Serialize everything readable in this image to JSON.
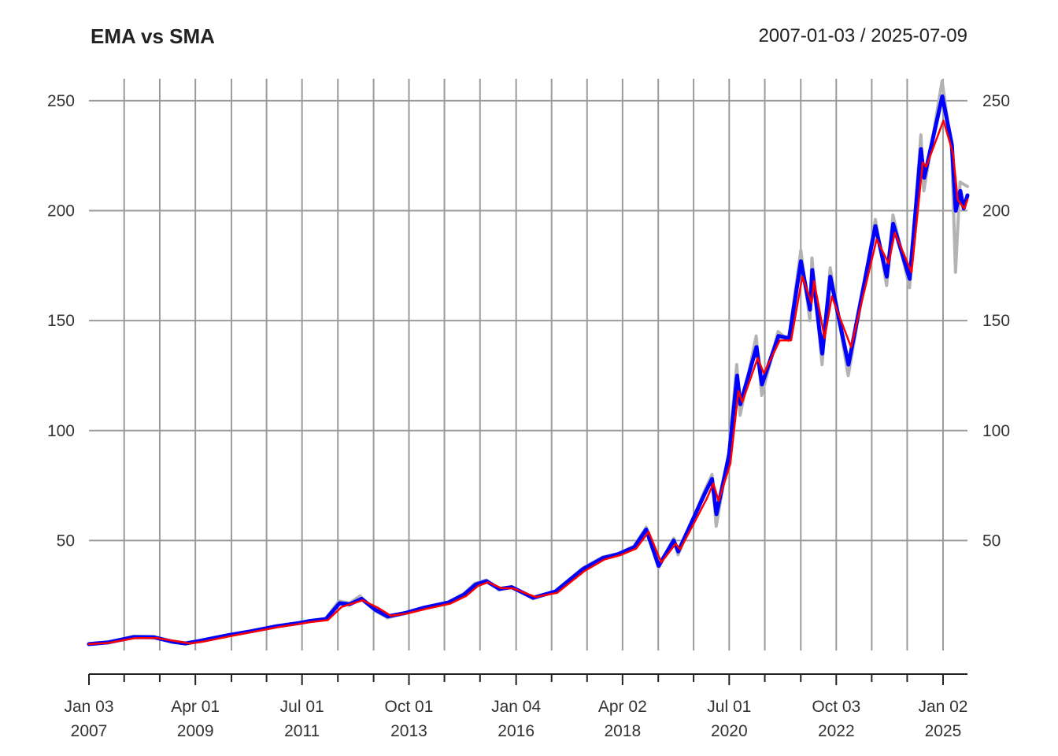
{
  "chart_data": {
    "type": "line",
    "title": "EMA vs SMA",
    "date_range": "2007-01-03 / 2025-07-09",
    "xlabel": "",
    "ylabel": "",
    "xlim": [
      "2007-01-03",
      "2025-07-09"
    ],
    "ylim": [
      0,
      260
    ],
    "y_ticks": [
      50,
      100,
      150,
      200,
      250
    ],
    "x_ticks": [
      {
        "date": "2007-01-03",
        "label_line1": "Jan 03",
        "label_line2": "2007"
      },
      {
        "date": "2007-10-01",
        "label_line1": "",
        "label_line2": ""
      },
      {
        "date": "2008-07-01",
        "label_line1": "",
        "label_line2": ""
      },
      {
        "date": "2009-04-01",
        "label_line1": "Apr 01",
        "label_line2": "2009"
      },
      {
        "date": "2010-01-04",
        "label_line1": "",
        "label_line2": ""
      },
      {
        "date": "2010-10-01",
        "label_line1": "",
        "label_line2": ""
      },
      {
        "date": "2011-07-01",
        "label_line1": "Jul 01",
        "label_line2": "2011"
      },
      {
        "date": "2012-04-02",
        "label_line1": "",
        "label_line2": ""
      },
      {
        "date": "2013-01-02",
        "label_line1": "",
        "label_line2": ""
      },
      {
        "date": "2013-10-01",
        "label_line1": "Oct 01",
        "label_line2": "2013"
      },
      {
        "date": "2014-07-01",
        "label_line1": "",
        "label_line2": ""
      },
      {
        "date": "2015-04-01",
        "label_line1": "",
        "label_line2": ""
      },
      {
        "date": "2016-01-04",
        "label_line1": "Jan 04",
        "label_line2": "2016"
      },
      {
        "date": "2016-10-03",
        "label_line1": "",
        "label_line2": ""
      },
      {
        "date": "2017-07-03",
        "label_line1": "",
        "label_line2": ""
      },
      {
        "date": "2018-04-02",
        "label_line1": "Apr 02",
        "label_line2": "2018"
      },
      {
        "date": "2019-01-02",
        "label_line1": "",
        "label_line2": ""
      },
      {
        "date": "2019-10-01",
        "label_line1": "",
        "label_line2": ""
      },
      {
        "date": "2020-07-01",
        "label_line1": "Jul 01",
        "label_line2": "2020"
      },
      {
        "date": "2021-04-01",
        "label_line1": "",
        "label_line2": ""
      },
      {
        "date": "2022-01-03",
        "label_line1": "",
        "label_line2": ""
      },
      {
        "date": "2022-10-03",
        "label_line1": "Oct 03",
        "label_line2": "2022"
      },
      {
        "date": "2023-07-03",
        "label_line1": "",
        "label_line2": ""
      },
      {
        "date": "2024-04-01",
        "label_line1": "",
        "label_line2": ""
      },
      {
        "date": "2025-01-02",
        "label_line1": "Jan 02",
        "label_line2": "2025"
      }
    ],
    "grid": true,
    "series": [
      {
        "role": "price",
        "color": "#b3b3b3",
        "points": [
          [
            "2007-01-03",
            2.9
          ],
          [
            "2007-06-01",
            3.8
          ],
          [
            "2007-12-15",
            6.5
          ],
          [
            "2008-05-15",
            6.3
          ],
          [
            "2008-10-01",
            3.8
          ],
          [
            "2009-01-15",
            3.0
          ],
          [
            "2009-05-01",
            4.5
          ],
          [
            "2009-12-15",
            7.2
          ],
          [
            "2010-06-01",
            8.8
          ],
          [
            "2010-12-15",
            11.2
          ],
          [
            "2011-06-01",
            12.6
          ],
          [
            "2011-09-01",
            13.6
          ],
          [
            "2012-01-01",
            14.5
          ],
          [
            "2012-04-10",
            22.5
          ],
          [
            "2012-07-01",
            21.5
          ],
          [
            "2012-09-20",
            24.8
          ],
          [
            "2013-01-15",
            18.0
          ],
          [
            "2013-04-20",
            14.8
          ],
          [
            "2013-09-01",
            17.0
          ],
          [
            "2014-01-15",
            19.5
          ],
          [
            "2014-08-01",
            22.0
          ],
          [
            "2014-12-01",
            26.0
          ],
          [
            "2015-02-20",
            30.5
          ],
          [
            "2015-05-20",
            32.0
          ],
          [
            "2015-08-25",
            27.5
          ],
          [
            "2015-12-01",
            29.0
          ],
          [
            "2016-05-12",
            23.5
          ],
          [
            "2016-11-01",
            27.0
          ],
          [
            "2017-06-01",
            37.5
          ],
          [
            "2017-11-01",
            42.5
          ],
          [
            "2018-03-01",
            44.0
          ],
          [
            "2018-07-01",
            47.5
          ],
          [
            "2018-10-01",
            56.0
          ],
          [
            "2019-01-03",
            37.5
          ],
          [
            "2019-05-01",
            51.0
          ],
          [
            "2019-06-03",
            43.5
          ],
          [
            "2019-12-31",
            73.5
          ],
          [
            "2020-02-20",
            80.0
          ],
          [
            "2020-03-23",
            56.5
          ],
          [
            "2020-06-30",
            91.0
          ],
          [
            "2020-08-28",
            130.0
          ],
          [
            "2020-09-23",
            107.0
          ],
          [
            "2021-01-25",
            143.0
          ],
          [
            "2021-03-08",
            116.0
          ],
          [
            "2021-07-12",
            145.0
          ],
          [
            "2021-10-01",
            141.0
          ],
          [
            "2022-01-03",
            182.0
          ],
          [
            "2022-03-14",
            150.0
          ],
          [
            "2022-03-30",
            178.5
          ],
          [
            "2022-06-16",
            130.0
          ],
          [
            "2022-08-17",
            174.0
          ],
          [
            "2023-01-03",
            125.0
          ],
          [
            "2023-07-31",
            196.0
          ],
          [
            "2023-10-26",
            166.0
          ],
          [
            "2023-12-14",
            198.0
          ],
          [
            "2024-04-19",
            165.0
          ],
          [
            "2024-07-15",
            234.5
          ],
          [
            "2024-08-07",
            209.0
          ],
          [
            "2024-12-26",
            259.0
          ],
          [
            "2025-03-10",
            227.0
          ],
          [
            "2025-04-08",
            172.0
          ],
          [
            "2025-05-13",
            213.0
          ],
          [
            "2025-07-09",
            211.0
          ]
        ]
      },
      {
        "role": "ema",
        "color": "#0000ff",
        "points": [
          [
            "2007-01-03",
            2.9
          ],
          [
            "2007-06-01",
            3.7
          ],
          [
            "2007-12-15",
            6.1
          ],
          [
            "2008-05-15",
            6.0
          ],
          [
            "2008-10-01",
            4.1
          ],
          [
            "2009-01-15",
            3.2
          ],
          [
            "2009-05-01",
            4.3
          ],
          [
            "2009-12-15",
            7.0
          ],
          [
            "2010-06-01",
            8.7
          ],
          [
            "2010-12-15",
            11.0
          ],
          [
            "2011-06-01",
            12.4
          ],
          [
            "2011-09-01",
            13.4
          ],
          [
            "2012-01-01",
            14.3
          ],
          [
            "2012-04-15",
            21.5
          ],
          [
            "2012-07-01",
            21.0
          ],
          [
            "2012-10-01",
            23.5
          ],
          [
            "2013-01-15",
            18.5
          ],
          [
            "2013-04-20",
            15.5
          ],
          [
            "2013-09-01",
            17.0
          ],
          [
            "2014-01-15",
            19.3
          ],
          [
            "2014-08-01",
            21.8
          ],
          [
            "2014-12-01",
            25.5
          ],
          [
            "2015-02-28",
            30.0
          ],
          [
            "2015-05-20",
            31.5
          ],
          [
            "2015-08-28",
            28.0
          ],
          [
            "2015-12-01",
            28.8
          ],
          [
            "2016-05-15",
            24.0
          ],
          [
            "2016-11-01",
            26.8
          ],
          [
            "2017-06-01",
            37.0
          ],
          [
            "2017-11-01",
            42.0
          ],
          [
            "2018-03-01",
            43.8
          ],
          [
            "2018-07-01",
            47.0
          ],
          [
            "2018-10-01",
            55.0
          ],
          [
            "2019-01-05",
            38.5
          ],
          [
            "2019-05-01",
            50.0
          ],
          [
            "2019-06-05",
            45.0
          ],
          [
            "2019-12-31",
            72.0
          ],
          [
            "2020-02-20",
            78.0
          ],
          [
            "2020-03-25",
            62.0
          ],
          [
            "2020-06-30",
            89.0
          ],
          [
            "2020-08-31",
            125.0
          ],
          [
            "2020-09-25",
            112.0
          ],
          [
            "2021-01-27",
            138.0
          ],
          [
            "2021-03-10",
            121.0
          ],
          [
            "2021-07-15",
            143.0
          ],
          [
            "2021-10-05",
            142.0
          ],
          [
            "2022-01-04",
            177.0
          ],
          [
            "2022-03-15",
            155.0
          ],
          [
            "2022-04-01",
            173.0
          ],
          [
            "2022-06-17",
            135.0
          ],
          [
            "2022-08-18",
            170.0
          ],
          [
            "2023-01-05",
            130.0
          ],
          [
            "2023-07-31",
            193.0
          ],
          [
            "2023-10-27",
            170.0
          ],
          [
            "2023-12-15",
            194.0
          ],
          [
            "2024-04-20",
            169.0
          ],
          [
            "2024-07-16",
            228.0
          ],
          [
            "2024-08-10",
            215.0
          ],
          [
            "2024-12-27",
            252.0
          ],
          [
            "2025-03-11",
            230.0
          ],
          [
            "2025-04-10",
            200.0
          ],
          [
            "2025-05-15",
            209.0
          ],
          [
            "2025-06-10",
            201.0
          ],
          [
            "2025-07-09",
            207.0
          ]
        ]
      },
      {
        "role": "sma",
        "color": "#ff0000",
        "points": [
          [
            "2007-01-03",
            2.9
          ],
          [
            "2007-06-01",
            3.4
          ],
          [
            "2007-12-20",
            5.6
          ],
          [
            "2008-06-01",
            5.7
          ],
          [
            "2008-11-01",
            4.3
          ],
          [
            "2009-02-15",
            3.2
          ],
          [
            "2009-06-01",
            4.0
          ],
          [
            "2009-12-31",
            6.6
          ],
          [
            "2010-06-15",
            8.4
          ],
          [
            "2010-12-31",
            10.6
          ],
          [
            "2011-06-15",
            12.1
          ],
          [
            "2011-09-15",
            13.0
          ],
          [
            "2012-01-15",
            13.8
          ],
          [
            "2012-05-01",
            19.8
          ],
          [
            "2012-07-15",
            21.2
          ],
          [
            "2012-10-10",
            22.8
          ],
          [
            "2013-02-01",
            19.5
          ],
          [
            "2013-05-15",
            15.8
          ],
          [
            "2013-09-15",
            16.8
          ],
          [
            "2014-02-01",
            18.8
          ],
          [
            "2014-08-15",
            21.3
          ],
          [
            "2014-12-15",
            24.8
          ],
          [
            "2015-03-15",
            29.3
          ],
          [
            "2015-06-01",
            31.0
          ],
          [
            "2015-09-10",
            28.4
          ],
          [
            "2015-12-15",
            28.2
          ],
          [
            "2016-06-01",
            24.3
          ],
          [
            "2016-11-15",
            26.2
          ],
          [
            "2017-06-15",
            36.2
          ],
          [
            "2017-11-15",
            41.4
          ],
          [
            "2018-03-15",
            43.3
          ],
          [
            "2018-07-15",
            46.3
          ],
          [
            "2018-10-20",
            54.0
          ],
          [
            "2019-01-25",
            40.0
          ],
          [
            "2019-05-15",
            48.5
          ],
          [
            "2019-06-20",
            46.0
          ],
          [
            "2020-01-10",
            69.0
          ],
          [
            "2020-03-01",
            76.0
          ],
          [
            "2020-04-10",
            68.0
          ],
          [
            "2020-07-10",
            85.0
          ],
          [
            "2020-09-10",
            118.0
          ],
          [
            "2020-10-10",
            113.0
          ],
          [
            "2021-02-05",
            133.0
          ],
          [
            "2021-03-25",
            126.0
          ],
          [
            "2021-07-25",
            141.0
          ],
          [
            "2021-10-20",
            141.0
          ],
          [
            "2022-01-15",
            170.0
          ],
          [
            "2022-03-28",
            158.0
          ],
          [
            "2022-04-15",
            168.0
          ],
          [
            "2022-07-05",
            142.0
          ],
          [
            "2022-08-30",
            161.0
          ],
          [
            "2023-01-25",
            138.0
          ],
          [
            "2023-08-10",
            187.0
          ],
          [
            "2023-11-10",
            176.0
          ],
          [
            "2023-12-28",
            190.0
          ],
          [
            "2024-05-05",
            172.0
          ],
          [
            "2024-07-30",
            222.0
          ],
          [
            "2024-08-25",
            220.0
          ],
          [
            "2025-01-05",
            241.0
          ],
          [
            "2025-03-20",
            226.0
          ],
          [
            "2025-04-25",
            205.0
          ],
          [
            "2025-06-15",
            201.0
          ],
          [
            "2025-07-09",
            205.0
          ]
        ]
      }
    ]
  }
}
